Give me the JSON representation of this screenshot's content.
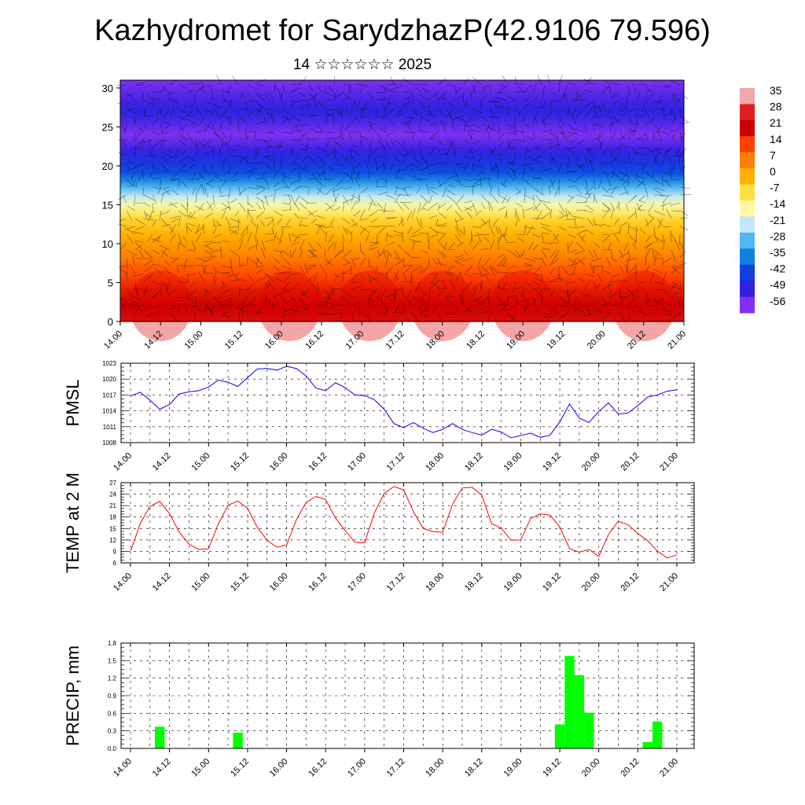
{
  "page": {
    "title": "Kazhydromet for SarydzhazP(42.9106 79.596)",
    "subtitle": "14 ☆☆☆☆☆☆ 2025"
  },
  "chart_data": [
    {
      "type": "heatmap",
      "name": "upper-air-temperature-wind",
      "x_ticks": [
        "14.00",
        "14.12",
        "15.00",
        "15.12",
        "16.00",
        "16.12",
        "17.00",
        "17.12",
        "18.00",
        "18.12",
        "19.00",
        "19.12",
        "20.00",
        "20.12",
        "21.00"
      ],
      "y_ticks": [
        0,
        5,
        10,
        15,
        20,
        25,
        30
      ],
      "ylim": [
        0,
        31
      ],
      "colorbar": {
        "labels": [
          "35",
          "28",
          "21",
          "14",
          "7",
          "0",
          "-7",
          "-14",
          "-21",
          "-28",
          "-35",
          "-42",
          "-49",
          "-56"
        ],
        "colors": [
          "#f2a8a8",
          "#e02020",
          "#cc0000",
          "#ff4000",
          "#ff8000",
          "#ffb000",
          "#ffe040",
          "#fff8a0",
          "#c0e8f8",
          "#50b8f0",
          "#1080e0",
          "#1040e0",
          "#3020e0",
          "#8030f0"
        ]
      },
      "temperature_profile": [
        {
          "h": 0,
          "t": 24
        },
        {
          "h": 4,
          "t": 18
        },
        {
          "h": 8,
          "t": 8
        },
        {
          "h": 13,
          "t": -5
        },
        {
          "h": 16,
          "t": -20
        },
        {
          "h": 19,
          "t": -40
        },
        {
          "h": 24,
          "t": -56
        },
        {
          "h": 27,
          "t": -48
        },
        {
          "h": 31,
          "t": -56
        }
      ]
    },
    {
      "type": "line",
      "name": "pmsl",
      "ylabel": "PMSL",
      "y_ticks": [
        1008,
        1011,
        1014,
        1017,
        1020,
        1023
      ],
      "ylim": [
        1008,
        1023
      ],
      "x_ticks": [
        "14.00",
        "14.12",
        "15.00",
        "15.12",
        "16.00",
        "16.12",
        "17.00",
        "17.12",
        "18.00",
        "18.12",
        "19.00",
        "19.12",
        "20.00",
        "20.12",
        "21.00"
      ],
      "color": "#0000ff",
      "x_hours": [
        0,
        3,
        6,
        9,
        12,
        15,
        18,
        21,
        24,
        27,
        30,
        33,
        36,
        39,
        42,
        45,
        48,
        51,
        54,
        57,
        60,
        63,
        66,
        69,
        72,
        75,
        78,
        81,
        84,
        87,
        90,
        93,
        96,
        99,
        102,
        105,
        108,
        111,
        114,
        117,
        120,
        123,
        126,
        129,
        132,
        135,
        138,
        141,
        144,
        147,
        150,
        153,
        156,
        159,
        162,
        165,
        168
      ],
      "values": [
        1016.8,
        1017.5,
        1016.0,
        1014.3,
        1015.2,
        1017.2,
        1017.6,
        1017.8,
        1018.5,
        1019.8,
        1019.4,
        1018.6,
        1020.3,
        1021.9,
        1022.0,
        1021.7,
        1022.4,
        1022.0,
        1020.6,
        1018.3,
        1017.8,
        1019.3,
        1018.4,
        1017.0,
        1016.9,
        1016.1,
        1014.3,
        1011.6,
        1010.8,
        1011.8,
        1010.7,
        1009.9,
        1010.5,
        1011.6,
        1010.5,
        1009.9,
        1009.4,
        1010.5,
        1010.0,
        1008.9,
        1009.3,
        1009.8,
        1009.0,
        1009.4,
        1011.9,
        1015.3,
        1012.6,
        1011.8,
        1013.9,
        1015.5,
        1013.4,
        1013.6,
        1015.0,
        1016.6,
        1017.0,
        1017.7,
        1018.0
      ]
    },
    {
      "type": "line",
      "name": "temp-2m",
      "ylabel": "TEMP at 2 M",
      "y_ticks": [
        6,
        9,
        12,
        15,
        18,
        21,
        24,
        27
      ],
      "ylim": [
        6,
        27
      ],
      "x_ticks": [
        "14.00",
        "14.12",
        "15.00",
        "15.12",
        "16.00",
        "16.12",
        "17.00",
        "17.12",
        "18.00",
        "18.12",
        "19.00",
        "19.12",
        "20.00",
        "20.12",
        "21.00"
      ],
      "color": "#ff0000",
      "x_hours": [
        0,
        3,
        6,
        9,
        12,
        15,
        18,
        21,
        24,
        27,
        30,
        33,
        36,
        39,
        42,
        45,
        48,
        51,
        54,
        57,
        60,
        63,
        66,
        69,
        72,
        75,
        78,
        81,
        84,
        87,
        90,
        93,
        96,
        99,
        102,
        105,
        108,
        111,
        114,
        117,
        120,
        123,
        126,
        129,
        132,
        135,
        138,
        141,
        144,
        147,
        150,
        153,
        156,
        159,
        162,
        165,
        168
      ],
      "values": [
        9.0,
        16.3,
        20.8,
        22.1,
        18.9,
        14.0,
        10.9,
        9.5,
        9.7,
        16.2,
        21.1,
        22.2,
        20.3,
        15.3,
        11.9,
        10.1,
        10.7,
        17.3,
        21.8,
        23.4,
        22.6,
        17.8,
        14.5,
        11.4,
        11.3,
        19.1,
        24.2,
        26.0,
        25.1,
        19.4,
        15.0,
        14.2,
        14.0,
        21.3,
        25.6,
        25.8,
        23.8,
        16.3,
        15.1,
        11.9,
        12.0,
        17.6,
        18.8,
        18.5,
        15.4,
        9.7,
        8.8,
        9.5,
        7.7,
        13.5,
        16.9,
        16.0,
        13.7,
        11.8,
        9.1,
        7.3,
        8.1
      ]
    },
    {
      "type": "bar",
      "name": "precip",
      "ylabel": "PRECIP, mm",
      "y_ticks": [
        "0.0",
        "0.3",
        "0.6",
        "0.9",
        "1.2",
        "1.5",
        "1.8"
      ],
      "ylim": [
        0,
        1.8
      ],
      "x_ticks": [
        "14.00",
        "14.12",
        "15.00",
        "15.12",
        "16.00",
        "16.12",
        "17.00",
        "17.12",
        "18.00",
        "18.12",
        "19.00",
        "19.12",
        "20.00",
        "20.12",
        "21.00"
      ],
      "color": "#00ff00",
      "x_hours": [
        9,
        33,
        132,
        135,
        138,
        141,
        159,
        162
      ],
      "values": [
        0.37,
        0.27,
        0.41,
        1.58,
        1.25,
        0.61,
        0.11,
        0.46
      ]
    }
  ]
}
